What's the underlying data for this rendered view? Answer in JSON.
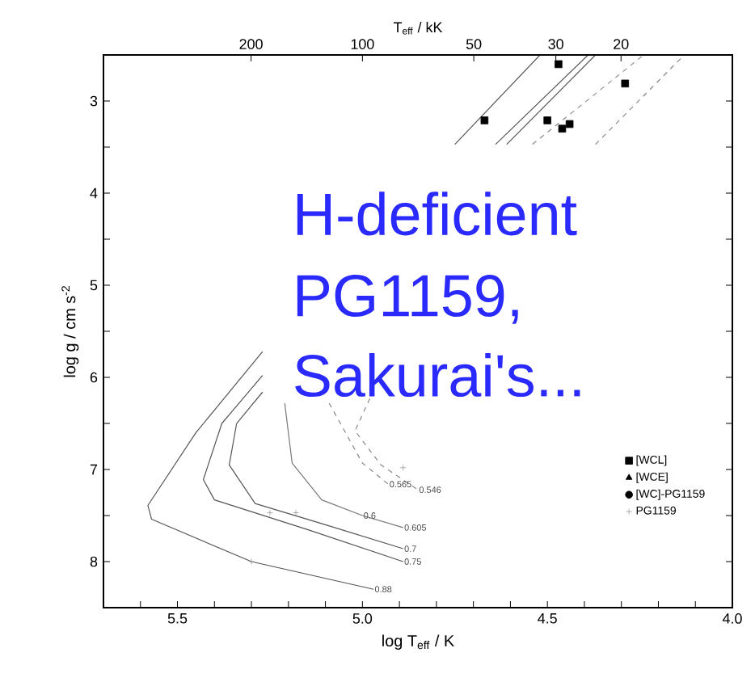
{
  "chart_data": {
    "type": "scatter",
    "xlabel": "log T$_{eff}$ / K",
    "ylabel": "log g / cm s$^{-2}$",
    "x2label": "T$_{eff}$ / kK",
    "xlim": [
      5.7,
      4.0
    ],
    "ylim": [
      8.5,
      2.5
    ],
    "x2lim": [
      501.2,
      10
    ],
    "log": "x2",
    "xticks": [
      {
        "value": 5.6,
        "label": null
      },
      5.5,
      {
        "value": 5.4,
        "label": null
      },
      {
        "value": 5.3,
        "label": null
      },
      {
        "value": 5.2,
        "label": null
      },
      {
        "value": 5.1,
        "label": null
      },
      {
        "value": 5.0,
        "label": "5.0"
      },
      {
        "value": 4.9,
        "label": null
      },
      {
        "value": 4.8,
        "label": null
      },
      {
        "value": 4.7,
        "label": null
      },
      {
        "value": 4.6,
        "label": null
      },
      4.5,
      {
        "value": 4.4,
        "label": null
      },
      {
        "value": 4.3,
        "label": null
      },
      {
        "value": 4.2,
        "label": null
      },
      {
        "value": 4.1,
        "label": null
      },
      {
        "value": 4.0,
        "label": "4.0"
      }
    ],
    "yticks": [
      3,
      {
        "value": 3.5,
        "label": null
      },
      4,
      {
        "value": 4.5,
        "label": null
      },
      5,
      {
        "value": 5.5,
        "label": null
      },
      6,
      {
        "value": 6.5,
        "label": null
      },
      7,
      {
        "value": 7.5,
        "label": null
      },
      8
    ],
    "x2ticks": [
      200,
      100,
      50,
      30,
      20
    ],
    "legend": "right",
    "series": [
      {
        "name": "[WCL]",
        "marker": "square",
        "color": "#000000",
        "x": [
          4.47,
          4.67,
          4.5,
          4.46,
          4.44,
          4.29
        ],
        "values": [
          2.6,
          3.21,
          3.21,
          3.3,
          3.25,
          2.81
        ]
      },
      {
        "name": "[WCE]",
        "marker": "triangle",
        "color": "#000000"
      },
      {
        "name": "[WC]-PG1159",
        "marker": "circle",
        "color": "#000000"
      },
      {
        "name": "PG1159",
        "marker": "cross",
        "color": "#999999",
        "x": [
          5.3,
          5.25,
          5.18,
          4.89
        ],
        "values": [
          8.0,
          7.47,
          7.47,
          6.98
        ]
      },
      {
        "type": "line",
        "line_style": "solid",
        "color": "#555555",
        "x": [
          4.75,
          4.52
        ],
        "values": [
          3.47,
          2.5
        ]
      },
      {
        "type": "line",
        "line_style": "solid",
        "color": "#555555",
        "x": [
          4.64,
          4.39
        ],
        "values": [
          3.47,
          2.5
        ]
      },
      {
        "type": "line",
        "line_style": "solid",
        "color": "#555555",
        "x": [
          4.61,
          4.37
        ],
        "values": [
          3.47,
          2.5
        ]
      },
      {
        "type": "line",
        "line_style": "dashed",
        "color": "#888888",
        "x": [
          4.54,
          4.24
        ],
        "values": [
          3.47,
          2.5
        ]
      },
      {
        "type": "line",
        "line_style": "dashed",
        "color": "#888888",
        "x": [
          4.37,
          4.13
        ],
        "values": [
          3.47,
          2.5
        ]
      },
      {
        "type": "line",
        "line_style": "solid",
        "color": "#555555",
        "x": [
          5.27,
          5.45,
          5.58,
          5.57,
          5.3,
          4.97
        ],
        "values": [
          5.72,
          6.6,
          7.39,
          7.54,
          8.0,
          8.3
        ]
      },
      {
        "type": "line",
        "line_style": "solid",
        "color": "#555555",
        "x": [
          5.27,
          5.38,
          5.43,
          5.4,
          5.15,
          4.89
        ],
        "values": [
          5.98,
          6.5,
          7.11,
          7.33,
          7.65,
          8.0
        ]
      },
      {
        "type": "line",
        "line_style": "solid",
        "color": "#555555",
        "x": [
          5.27,
          5.34,
          5.36,
          5.29,
          5.1,
          4.89
        ],
        "values": [
          6.16,
          6.5,
          6.95,
          7.37,
          7.6,
          7.86
        ]
      },
      {
        "type": "line",
        "line_style": "solid",
        "color": "#777777",
        "x": [
          5.21,
          5.19,
          5.11,
          5.0,
          4.89
        ],
        "values": [
          6.28,
          6.93,
          7.33,
          7.5,
          7.63
        ]
      },
      {
        "type": "line",
        "line_style": "dashed",
        "color": "#888888",
        "x": [
          5.09,
          5.0,
          4.93
        ],
        "values": [
          6.28,
          6.93,
          7.16
        ]
      },
      {
        "type": "line",
        "line_style": "dashed",
        "color": "#888888",
        "x": [
          4.98,
          5.02,
          4.95,
          4.85
        ],
        "values": [
          6.23,
          6.58,
          6.95,
          7.22
        ]
      }
    ],
    "annotations": [
      "H-deficient",
      "PG1159,",
      "Sakurai's...",
      {
        "text": "0.88",
        "x": 4.97,
        "y": 8.3
      },
      {
        "text": "0.75",
        "x": 4.89,
        "y": 8.0
      },
      {
        "text": "0.7",
        "x": 4.89,
        "y": 7.86
      },
      {
        "text": "0.6",
        "x": 5.0,
        "y": 7.5
      },
      {
        "text": "0.605",
        "x": 4.89,
        "y": 7.63
      },
      {
        "text": "0.546",
        "x": 4.85,
        "y": 7.22
      },
      {
        "text": "0.565",
        "x": 4.93,
        "y": 7.16
      }
    ]
  }
}
